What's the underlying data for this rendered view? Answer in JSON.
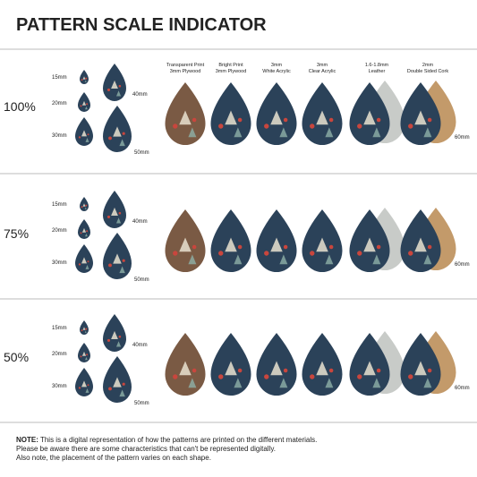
{
  "title": "PATTERN SCALE INDICATOR",
  "materials": [
    {
      "line1": "Transparent Print",
      "line2": "3mm Plywood"
    },
    {
      "line1": "Bright Print",
      "line2": "3mm Plywood"
    },
    {
      "line1": "3mm",
      "line2": "White Acrylic"
    },
    {
      "line1": "3mm",
      "line2": "Clear Acrylic"
    },
    {
      "line1": "1.6-1.8mm",
      "line2": "Leather"
    },
    {
      "line1": "2mm",
      "line2": "Double Sided Cork"
    }
  ],
  "sections": [
    {
      "scale": "100%",
      "sizes": [
        "15mm",
        "20mm",
        "30mm",
        "40mm",
        "50mm"
      ],
      "material_size": "60mm"
    },
    {
      "scale": "75%",
      "sizes": [
        "15mm",
        "20mm",
        "30mm",
        "40mm",
        "50mm"
      ],
      "material_size": "60mm"
    },
    {
      "scale": "50%",
      "sizes": [
        "15mm",
        "20mm",
        "30mm",
        "40mm",
        "50mm"
      ],
      "material_size": "60mm"
    }
  ],
  "note": {
    "label": "NOTE:",
    "lines": [
      " This is a digital representation of how the patterns are printed on the different materials.",
      "Please be aware there are some characteristics that can't be represented digitally.",
      "Also note, the placement of the pattern varies on each shape."
    ]
  }
}
